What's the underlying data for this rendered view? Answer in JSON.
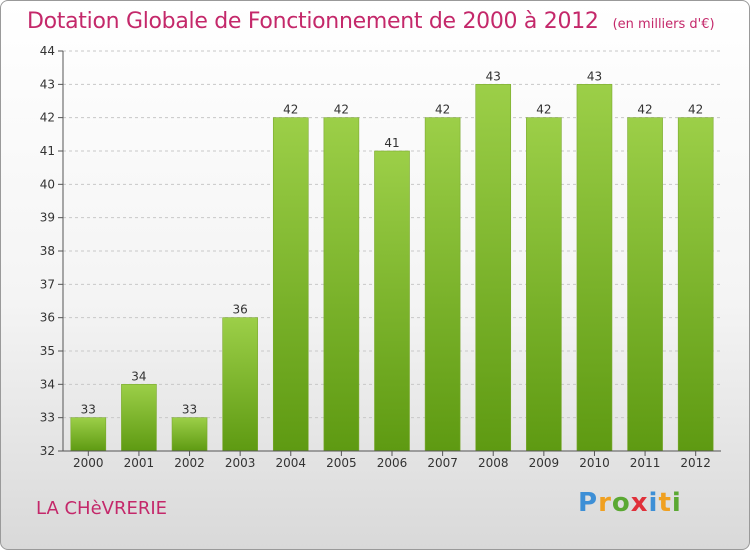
{
  "title": "Dotation Globale de Fonctionnement de 2000 à 2012",
  "unit": "(en milliers d'€)",
  "commune": "LA CHèVRERIE",
  "logo": {
    "p": "P",
    "r": "r",
    "o": "o",
    "x": "x",
    "i": "i",
    "t": "t",
    "i2": "i"
  },
  "colors": {
    "bar_top": "#9ccf48",
    "bar_bottom": "#5e9a12",
    "title": "#c4286a"
  },
  "chart_data": {
    "type": "bar",
    "categories": [
      "2000",
      "2001",
      "2002",
      "2003",
      "2004",
      "2005",
      "2006",
      "2007",
      "2008",
      "2009",
      "2010",
      "2011",
      "2012"
    ],
    "values": [
      33,
      34,
      33,
      36,
      42,
      42,
      41,
      42,
      43,
      42,
      43,
      42,
      42
    ],
    "ylim": [
      32,
      44
    ],
    "yticks": [
      32,
      33,
      34,
      35,
      36,
      37,
      38,
      39,
      40,
      41,
      42,
      43,
      44
    ],
    "grid": "horizontal dashed"
  }
}
